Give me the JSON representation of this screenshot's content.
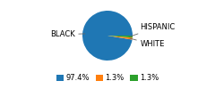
{
  "chart_data": {
    "type": "pie",
    "categories": [
      "BLACK",
      "WHITE",
      "HISPANIC"
    ],
    "values": [
      97.4,
      1.3,
      1.3
    ],
    "value_labels": [
      "97.4%",
      "1.3%",
      "1.3%"
    ],
    "legend": "lower center"
  }
}
